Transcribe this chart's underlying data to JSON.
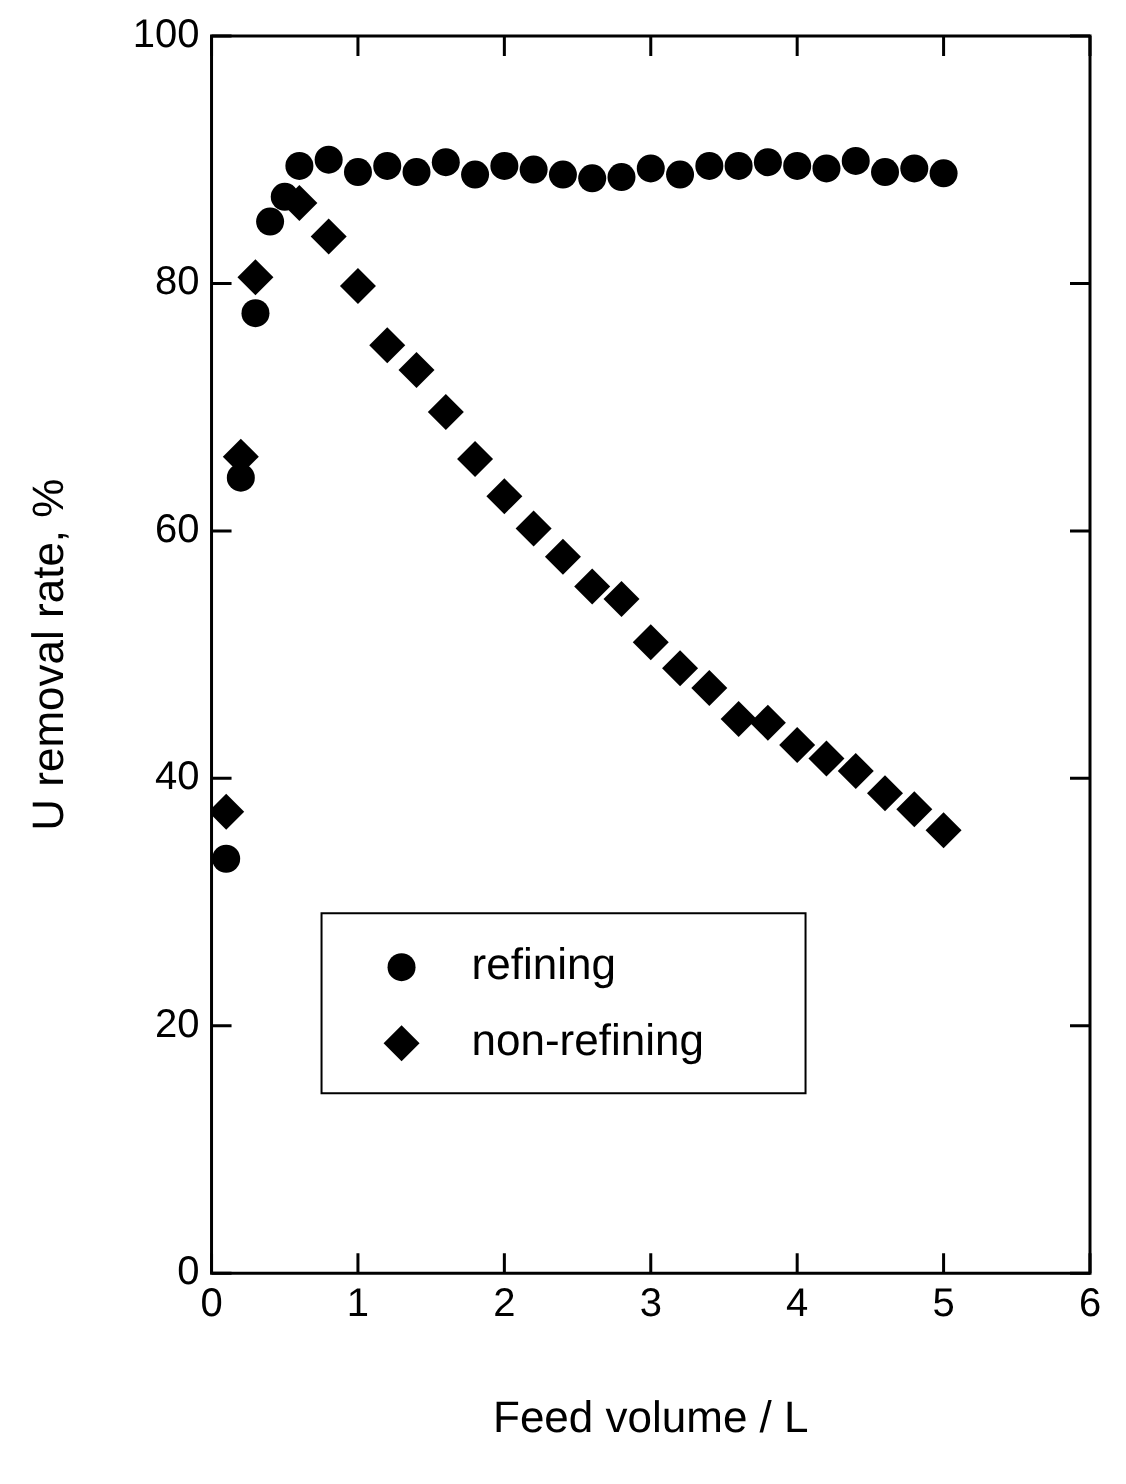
{
  "chart_data": {
    "type": "scatter",
    "xlabel": "Feed volume / L",
    "ylabel": "U removal rate, %",
    "xlim": [
      0,
      6
    ],
    "xticks": [
      0,
      1,
      2,
      3,
      4,
      5,
      6
    ],
    "ylim": [
      0,
      100
    ],
    "yticks": [
      0,
      20,
      40,
      60,
      80,
      100
    ],
    "grid": false,
    "legend": "bottom left",
    "series": [
      {
        "name": "refining",
        "color": "#000000",
        "marker": "circle",
        "x": [
          0.1,
          0.2,
          0.3,
          0.4,
          0.5,
          0.6,
          0.8,
          1.0,
          1.2,
          1.4,
          1.6,
          1.8,
          2.0,
          2.2,
          2.4,
          2.6,
          2.8,
          3.0,
          3.2,
          3.4,
          3.6,
          3.8,
          4.0,
          4.2,
          4.4,
          4.6,
          4.8,
          5.0
        ],
        "values": [
          33.5,
          64.3,
          77.6,
          85,
          87,
          89.5,
          90,
          89,
          89.5,
          89,
          89.8,
          88.8,
          89.5,
          89.2,
          88.8,
          88.5,
          88.6,
          89.3,
          88.8,
          89.5,
          89.5,
          89.8,
          89.5,
          89.3,
          89.9,
          89,
          89.3,
          88.9
        ]
      },
      {
        "name": "non-refining",
        "color": "#000000",
        "marker": "diamond",
        "x": [
          0.1,
          0.2,
          0.3,
          0.4,
          0.5,
          0.6,
          0.8,
          1.0,
          1.2,
          1.4,
          1.6,
          1.8,
          2.0,
          2.2,
          2.4,
          2.6,
          2.8,
          3.0,
          3.2,
          3.4,
          3.6,
          3.8,
          4.0,
          4.2,
          4.4,
          4.6,
          4.8,
          5.0
        ],
        "values": [
          37.3,
          66,
          80.5,
          null,
          null,
          86.5,
          83.8,
          79.8,
          75,
          73,
          69.6,
          65.8,
          62.8,
          60.2,
          57.9,
          55.5,
          54.5,
          51,
          48.9,
          47.3,
          44.8,
          44.5,
          42.7,
          41.6,
          40.6,
          38.8,
          37.5,
          35.8
        ]
      }
    ]
  }
}
